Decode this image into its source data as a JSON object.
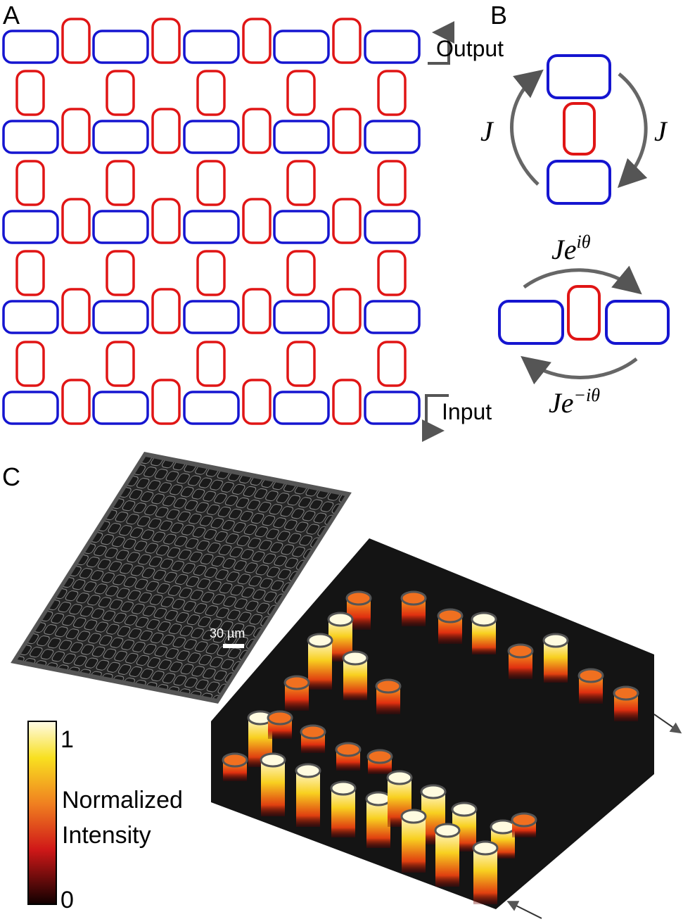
{
  "panels": [
    {
      "label": "A",
      "output_label": "Output",
      "input_label": "Input"
    },
    {
      "label": "B",
      "coupling_labels": [
        "J",
        "J"
      ],
      "forward_base": "Je",
      "forward_exp": "iθ",
      "backward_base": "Je",
      "backward_exp": "−iθ"
    },
    {
      "label": "C",
      "scale_bar": "30 µm",
      "colorbar": {
        "title": [
          "Normalized",
          "Intensity"
        ],
        "max": 1,
        "min": 0
      }
    }
  ]
}
